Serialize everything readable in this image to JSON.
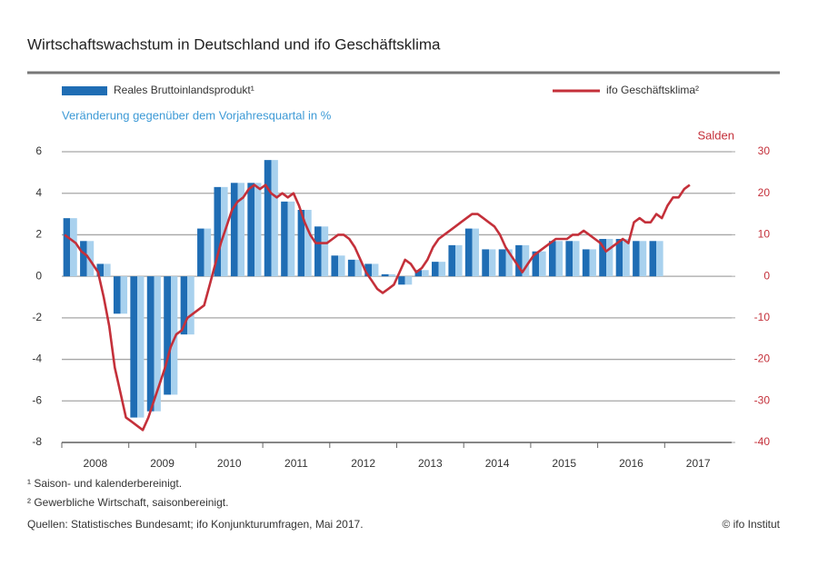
{
  "chart_data": {
    "type": "bar-line",
    "title": "Wirtschaftswachstum in Deutschland und ifo Geschäftsklima",
    "y_label": "Veränderung gegenüber dem Vorjahresquartal in %",
    "y2_label": "Salden",
    "footnotes": [
      "¹ Saison- und kalenderbereinigt.",
      "² Gewerbliche Wirtschaft, saisonbereinigt."
    ],
    "source": "Quellen: Statistisches Bundesamt; ifo Konjunkturumfragen, Mai 2017.",
    "credit": "© ifo Institut",
    "xlim": [
      2008,
      2018
    ],
    "xticks": [
      2008,
      2009,
      2010,
      2011,
      2012,
      2013,
      2014,
      2015,
      2016,
      2017
    ],
    "ylim": [
      -8,
      6
    ],
    "yticks": [
      6,
      4,
      2,
      0,
      -2,
      -4,
      -6,
      -8
    ],
    "y2lim": [
      -40,
      30
    ],
    "y2ticks": [
      30,
      20,
      10,
      0,
      -10,
      -20,
      -30,
      -40
    ],
    "grid": true,
    "series": [
      {
        "name": "Reales Bruttoinlandsprodukt¹",
        "type": "bar",
        "color": "#1f6db4",
        "light_color": "#a8d1ee",
        "values": [
          2.8,
          1.7,
          0.6,
          -1.8,
          -6.8,
          -6.5,
          -5.7,
          -2.8,
          2.3,
          4.3,
          4.5,
          4.5,
          5.6,
          3.6,
          3.2,
          2.4,
          1.0,
          0.8,
          0.6,
          0.1,
          -0.4,
          0.3,
          0.7,
          1.5,
          2.3,
          1.3,
          1.3,
          1.5,
          1.2,
          1.7,
          1.7,
          1.3,
          1.8,
          1.8,
          1.7,
          1.7
        ]
      },
      {
        "name": "ifo Geschäftsklima²",
        "type": "line",
        "axis": "y2",
        "color": "#c4303a",
        "values": [
          10,
          9,
          8,
          6,
          5,
          3,
          1,
          -5,
          -12,
          -22,
          -28,
          -34,
          -35,
          -36,
          -37,
          -34,
          -30,
          -26,
          -22,
          -17,
          -14,
          -13,
          -10,
          -9,
          -8,
          -7,
          -2,
          3,
          8,
          12,
          16,
          18,
          19,
          21,
          22,
          21,
          22,
          20,
          19,
          20,
          19,
          20,
          17,
          13,
          10,
          8,
          8,
          8,
          9,
          10,
          10,
          9,
          7,
          4,
          1,
          -1,
          -3,
          -4,
          -3,
          -2,
          1,
          4,
          3,
          1,
          2,
          4,
          7,
          9,
          10,
          11,
          12,
          13,
          14,
          15,
          15,
          14,
          13,
          12,
          10,
          7,
          5,
          3,
          1,
          3,
          5,
          6,
          7,
          8,
          9,
          9,
          9,
          10,
          10,
          11,
          10,
          9,
          8,
          6,
          7,
          8,
          9,
          8,
          13,
          14,
          13,
          13,
          15,
          14,
          17,
          19,
          19,
          21,
          22
        ]
      }
    ]
  }
}
